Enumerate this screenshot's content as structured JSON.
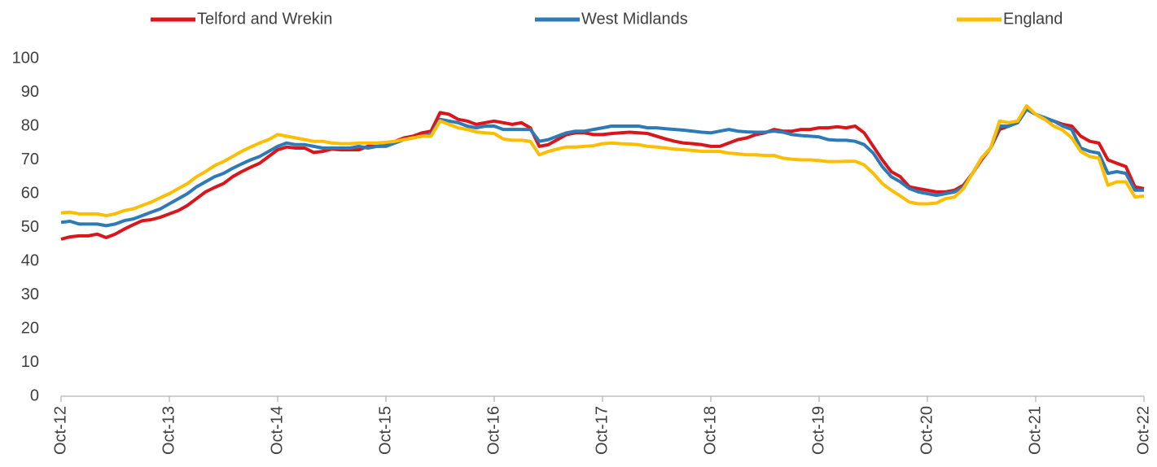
{
  "chart_data": {
    "type": "line",
    "categories": [
      "Oct-12",
      null,
      null,
      null,
      null,
      null,
      null,
      null,
      null,
      null,
      null,
      null,
      "Oct-13",
      null,
      null,
      null,
      null,
      null,
      null,
      null,
      null,
      null,
      null,
      null,
      "Oct-14",
      null,
      null,
      null,
      null,
      null,
      null,
      null,
      null,
      null,
      null,
      null,
      "Oct-15",
      null,
      null,
      null,
      null,
      null,
      null,
      null,
      null,
      null,
      null,
      null,
      "Oct-16",
      null,
      null,
      null,
      null,
      null,
      null,
      null,
      null,
      null,
      null,
      null,
      "Oct-17",
      null,
      null,
      null,
      null,
      null,
      null,
      null,
      null,
      null,
      null,
      null,
      "Oct-18",
      null,
      null,
      null,
      null,
      null,
      null,
      null,
      null,
      null,
      null,
      null,
      "Oct-19",
      null,
      null,
      null,
      null,
      null,
      null,
      null,
      null,
      null,
      null,
      null,
      "Oct-20",
      null,
      null,
      null,
      null,
      null,
      null,
      null,
      null,
      null,
      null,
      null,
      "Oct-21",
      null,
      null,
      null,
      null,
      null,
      null,
      null,
      null,
      null,
      null,
      null,
      "Oct-22"
    ],
    "series": [
      {
        "name": "Telford and Wrekin",
        "color": "#d9161c",
        "values": [
          46.5,
          47.2,
          47.5,
          47.5,
          48,
          47,
          48,
          49.5,
          50.8,
          52,
          52.3,
          53,
          54,
          55,
          56.5,
          58.5,
          60.5,
          61.8,
          63,
          65,
          66.5,
          67.8,
          69,
          71,
          73,
          73.8,
          73.5,
          73.5,
          72.2,
          72.5,
          73.2,
          73,
          73,
          73,
          74,
          74,
          74.2,
          75.5,
          76.5,
          77,
          78,
          78.5,
          84,
          83.5,
          82,
          81.5,
          80.5,
          81,
          81.5,
          81,
          80.5,
          81,
          79.5,
          74,
          74.5,
          76,
          77.5,
          78,
          78,
          77.5,
          77.5,
          77.8,
          78,
          78.2,
          78,
          77.8,
          77,
          76.2,
          75.5,
          75,
          74.8,
          74.5,
          74,
          74,
          75,
          76,
          76.5,
          77.5,
          78,
          79,
          78.5,
          78.5,
          79,
          79,
          79.5,
          79.5,
          79.8,
          79.5,
          80,
          78,
          74,
          70,
          66.5,
          65,
          62,
          61.5,
          61,
          60.5,
          60.5,
          61,
          62.5,
          66,
          70,
          73.5,
          79,
          80,
          81,
          85,
          83.5,
          82,
          81.5,
          80.5,
          80,
          77,
          75.5,
          75,
          70,
          69,
          68,
          62,
          61.5
        ]
      },
      {
        "name": "West Midlands",
        "color": "#2e7ab6",
        "values": [
          51.5,
          51.8,
          51,
          51,
          51,
          50.5,
          51,
          52,
          52.5,
          53.5,
          54.5,
          55.5,
          57,
          58.5,
          60,
          62,
          63.5,
          65,
          66,
          67.5,
          68.8,
          70,
          71,
          72.5,
          74,
          75,
          74.5,
          74.5,
          74,
          73.5,
          73.5,
          73.5,
          73.5,
          74,
          73.5,
          74,
          74,
          75,
          76,
          76.5,
          77,
          77.5,
          82,
          81.5,
          81,
          80,
          79.5,
          80,
          80,
          79,
          79,
          79,
          79,
          75.5,
          76,
          77,
          78,
          78.5,
          78.5,
          79,
          79.5,
          80,
          80,
          80,
          80,
          79.5,
          79.5,
          79.2,
          79,
          78.8,
          78.5,
          78.2,
          78,
          78.5,
          79,
          78.5,
          78.3,
          78.2,
          78.2,
          78.5,
          78.2,
          77.5,
          77.2,
          77,
          76.8,
          76,
          75.8,
          75.8,
          75.5,
          74.5,
          72,
          68,
          65,
          63.5,
          61.5,
          60.5,
          60,
          59.5,
          60,
          60.5,
          62,
          66,
          70.5,
          73.5,
          80,
          80,
          81,
          85,
          83.5,
          82.5,
          81.5,
          80,
          79,
          73.5,
          72.5,
          72,
          66,
          66.5,
          66,
          61,
          61
        ]
      },
      {
        "name": "England",
        "color": "#fdbd00",
        "values": [
          54.3,
          54.5,
          54,
          54,
          54,
          53.5,
          54,
          55,
          55.5,
          56.5,
          57.5,
          58.8,
          60,
          61.5,
          63,
          65,
          66.5,
          68.3,
          69.5,
          71,
          72.5,
          73.8,
          75,
          76,
          77.5,
          77,
          76.5,
          76,
          75.5,
          75.5,
          75,
          74.8,
          74.8,
          75,
          75,
          75,
          75.2,
          75.5,
          76,
          76.5,
          77,
          77,
          81.5,
          80.5,
          79.5,
          79,
          78.3,
          78,
          77.8,
          76.2,
          75.8,
          75.8,
          75.5,
          71.5,
          72.5,
          73.2,
          73.8,
          73.8,
          74,
          74.2,
          74.8,
          75,
          74.8,
          74.7,
          74.5,
          74,
          73.8,
          73.5,
          73.2,
          73,
          72.8,
          72.5,
          72.5,
          72.5,
          72,
          71.8,
          71.5,
          71.5,
          71.3,
          71.3,
          70.5,
          70.2,
          70,
          70,
          69.8,
          69.5,
          69.5,
          69.6,
          69.6,
          68.5,
          66,
          63,
          61,
          59.3,
          57.5,
          57,
          57,
          57.2,
          58.5,
          59,
          61.5,
          66,
          70.5,
          73.5,
          81.5,
          81,
          81.5,
          86,
          83.5,
          82,
          80,
          78.8,
          76.5,
          72.5,
          71,
          70.5,
          62.5,
          63.5,
          63.5,
          59,
          59.3
        ]
      }
    ],
    "ylim": [
      0,
      100
    ],
    "yticks": [
      0,
      10,
      20,
      30,
      40,
      50,
      60,
      70,
      80,
      90,
      100
    ],
    "grid": false
  }
}
